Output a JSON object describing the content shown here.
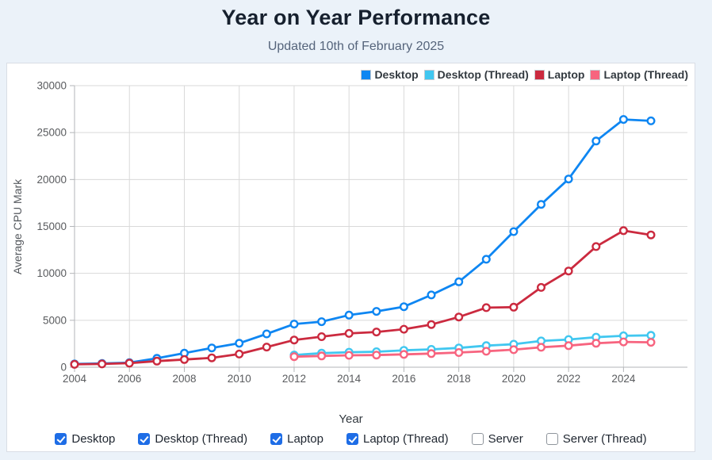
{
  "chart_data": {
    "type": "line",
    "title": "Year on Year Performance",
    "subtitle": "Updated 10th of February 2025",
    "xlabel": "Year",
    "ylabel": "Average CPU Mark",
    "x": [
      2004,
      2005,
      2006,
      2007,
      2008,
      2009,
      2010,
      2011,
      2012,
      2013,
      2014,
      2015,
      2016,
      2017,
      2018,
      2019,
      2020,
      2021,
      2022,
      2023,
      2024,
      2025
    ],
    "xticks": [
      2004,
      2006,
      2008,
      2010,
      2012,
      2014,
      2016,
      2018,
      2020,
      2022,
      2024
    ],
    "ylim": [
      0,
      30000
    ],
    "yticks": [
      0,
      5000,
      10000,
      15000,
      20000,
      25000,
      30000
    ],
    "grid": true,
    "legend_position": "top-right",
    "marker": "circle-open",
    "series": [
      {
        "name": "Desktop",
        "color": "#0e86f2",
        "values": [
          350,
          400,
          480,
          950,
          1500,
          2050,
          2550,
          3550,
          4600,
          4850,
          5550,
          5950,
          6450,
          7700,
          9100,
          11500,
          14450,
          17350,
          20050,
          24100,
          26400,
          26250
        ]
      },
      {
        "name": "Desktop (Thread)",
        "color": "#41c7f0",
        "values": [
          null,
          null,
          null,
          null,
          null,
          null,
          null,
          null,
          1300,
          1500,
          1600,
          1650,
          1800,
          1900,
          2050,
          2300,
          2450,
          2800,
          2950,
          3200,
          3350,
          3400
        ]
      },
      {
        "name": "Laptop",
        "color": "#cb2a3f",
        "values": [
          300,
          350,
          430,
          650,
          820,
          1000,
          1400,
          2150,
          2900,
          3250,
          3600,
          3750,
          4050,
          4550,
          5350,
          6350,
          6400,
          8500,
          10250,
          12850,
          14550,
          14100
        ]
      },
      {
        "name": "Laptop (Thread)",
        "color": "#f7647f",
        "values": [
          null,
          null,
          null,
          null,
          null,
          null,
          null,
          null,
          1120,
          1200,
          1270,
          1290,
          1370,
          1450,
          1560,
          1700,
          1870,
          2120,
          2300,
          2550,
          2700,
          2650
        ]
      }
    ]
  },
  "controls": {
    "checkboxes": [
      {
        "label": "Desktop",
        "checked": true
      },
      {
        "label": "Desktop (Thread)",
        "checked": true
      },
      {
        "label": "Laptop",
        "checked": true
      },
      {
        "label": "Laptop (Thread)",
        "checked": true
      },
      {
        "label": "Server",
        "checked": false
      },
      {
        "label": "Server (Thread)",
        "checked": false
      }
    ]
  },
  "colors": {
    "page_background": "#ebf2f9",
    "card_background": "#ffffff",
    "card_border": "#d9dee5",
    "grid": "#d9d9d9",
    "axis": "#b3b6b9",
    "tick_text": "#595b5e",
    "checkbox_accent": "#1e6de6"
  }
}
